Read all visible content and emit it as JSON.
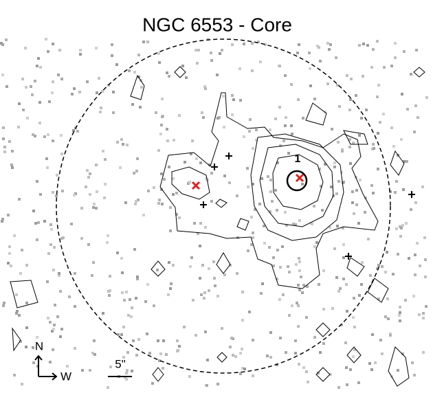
{
  "header": {
    "title": "NGC 6553 - Core"
  },
  "source_label": "1",
  "compass": {
    "north": "N",
    "west": "W"
  },
  "scale_bar": {
    "label": "5\""
  }
}
